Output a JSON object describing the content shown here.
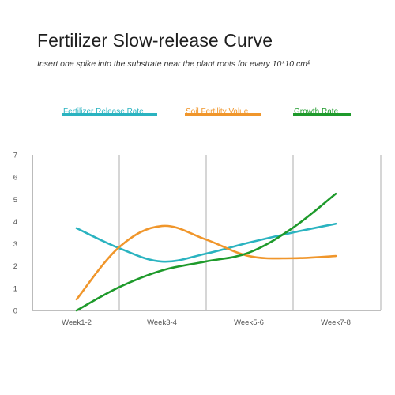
{
  "title": "Fertilizer Slow-release Curve",
  "subtitle": "Insert one spike into the substrate near the plant roots for every 10*10 cm²",
  "colors": {
    "release": "#2ab3c0",
    "fertility": "#f0962b",
    "growth": "#1e9a2b",
    "grid": "#999999",
    "axis": "#555555"
  },
  "chart_data": {
    "type": "line",
    "title": "Fertilizer Slow-release Curve",
    "subtitle": "Insert one spike into the substrate near the plant roots for every 10*10 cm²",
    "xlabel": "",
    "ylabel": "",
    "categories": [
      "Week1-2",
      "Week3-4",
      "Week5-6",
      "Week7-8"
    ],
    "ylim": [
      0,
      7
    ],
    "yticks": [
      "0",
      "1",
      "2",
      "3",
      "4",
      "5",
      "6",
      "7"
    ],
    "grid": "vertical",
    "legend_position": "top",
    "series": [
      {
        "name": "Fertilizer Release Rate",
        "color": "#2ab3c0",
        "x": [
          0,
          0.5,
          1,
          1.5,
          2,
          2.5,
          3
        ],
        "values": [
          3.7,
          2.8,
          2.2,
          2.55,
          3.05,
          3.5,
          3.9
        ]
      },
      {
        "name": "Soil Fertility Value",
        "color": "#f0962b",
        "x": [
          0,
          0.5,
          1,
          1.5,
          2,
          2.5,
          3
        ],
        "values": [
          0.5,
          2.85,
          3.8,
          3.2,
          2.45,
          2.35,
          2.45
        ]
      },
      {
        "name": "Growth Rate",
        "color": "#1e9a2b",
        "x": [
          0,
          0.5,
          1,
          1.5,
          2,
          2.5,
          3
        ],
        "values": [
          0.0,
          1.05,
          1.8,
          2.2,
          2.6,
          3.7,
          5.25
        ]
      }
    ]
  }
}
